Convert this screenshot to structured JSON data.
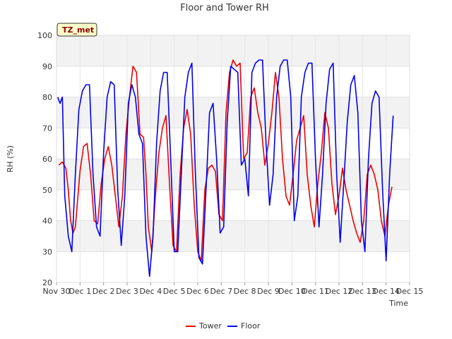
{
  "chart_data": {
    "type": "line",
    "title": "Floor and Tower RH",
    "xlabel": "Time",
    "ylabel": "RH (%)",
    "badge": "TZ_met",
    "xlim": [
      0,
      15
    ],
    "ylim": [
      20,
      100
    ],
    "x_ticks": [
      0,
      1,
      2,
      3,
      4,
      5,
      6,
      7,
      8,
      9,
      10,
      11,
      12,
      13,
      14,
      15
    ],
    "x_tick_labels": [
      "Nov 30",
      "Dec 1",
      "Dec 2",
      "Dec 3",
      "Dec 4",
      "Dec 5",
      "Dec 6",
      "Dec 7",
      "Dec 8",
      "Dec 9",
      "Dec 10",
      "Dec 11",
      "Dec 12",
      "Dec 13",
      "Dec 14",
      "Dec 15"
    ],
    "y_ticks": [
      20,
      30,
      40,
      50,
      60,
      70,
      80,
      90,
      100
    ],
    "y_tick_labels": [
      "20",
      "30",
      "40",
      "50",
      "60",
      "70",
      "80",
      "90",
      "100"
    ],
    "grid": true,
    "legend_position": "bottom-center",
    "series": [
      {
        "name": "Tower",
        "color": "#ee0000",
        "x": [
          0.1,
          0.25,
          0.4,
          0.5,
          0.6,
          0.7,
          0.8,
          1.0,
          1.15,
          1.3,
          1.45,
          1.6,
          1.75,
          1.9,
          2.05,
          2.2,
          2.35,
          2.5,
          2.65,
          2.8,
          2.95,
          3.1,
          3.25,
          3.4,
          3.55,
          3.7,
          3.8,
          3.9,
          4.05,
          4.2,
          4.35,
          4.5,
          4.65,
          4.8,
          4.95,
          5.1,
          5.25,
          5.4,
          5.55,
          5.7,
          5.85,
          6.0,
          6.15,
          6.3,
          6.45,
          6.6,
          6.75,
          6.9,
          7.05,
          7.2,
          7.35,
          7.5,
          7.65,
          7.8,
          7.95,
          8.1,
          8.25,
          8.4,
          8.55,
          8.7,
          8.85,
          9.0,
          9.15,
          9.3,
          9.45,
          9.6,
          9.75,
          9.9,
          10.05,
          10.2,
          10.35,
          10.5,
          10.65,
          10.8,
          10.95,
          11.1,
          11.25,
          11.4,
          11.55,
          11.7,
          11.85,
          12.0,
          12.15,
          12.3,
          12.45,
          12.6,
          12.75,
          12.9,
          13.05,
          13.2,
          13.35,
          13.5,
          13.65,
          13.8,
          13.95,
          14.1,
          14.25
        ],
        "y": [
          58,
          59,
          57,
          50,
          40,
          36,
          38,
          56,
          64,
          65,
          55,
          40,
          39,
          52,
          60,
          64,
          58,
          48,
          38,
          48,
          68,
          80,
          90,
          88,
          68,
          67,
          55,
          38,
          30,
          48,
          62,
          70,
          74,
          52,
          32,
          30,
          55,
          70,
          76,
          68,
          45,
          30,
          27,
          50,
          57,
          58,
          56,
          42,
          40,
          75,
          88,
          92,
          90,
          91,
          60,
          62,
          80,
          83,
          75,
          70,
          58,
          65,
          75,
          88,
          80,
          60,
          48,
          45,
          55,
          66,
          70,
          74,
          55,
          45,
          38,
          52,
          62,
          75,
          70,
          52,
          42,
          48,
          57,
          50,
          45,
          40,
          36,
          33,
          40,
          55,
          58,
          55,
          50,
          40,
          35,
          45,
          51
        ]
      },
      {
        "name": "Floor",
        "color": "#0000ee",
        "x": [
          0.05,
          0.15,
          0.25,
          0.35,
          0.5,
          0.65,
          0.8,
          0.95,
          1.1,
          1.25,
          1.4,
          1.55,
          1.7,
          1.85,
          2.0,
          2.15,
          2.3,
          2.45,
          2.6,
          2.75,
          2.9,
          3.05,
          3.2,
          3.35,
          3.5,
          3.65,
          3.8,
          3.95,
          4.1,
          4.25,
          4.4,
          4.55,
          4.7,
          4.85,
          5.0,
          5.15,
          5.3,
          5.45,
          5.6,
          5.75,
          5.9,
          6.05,
          6.2,
          6.35,
          6.5,
          6.65,
          6.8,
          6.95,
          7.1,
          7.25,
          7.4,
          7.55,
          7.7,
          7.85,
          8.0,
          8.15,
          8.3,
          8.45,
          8.6,
          8.75,
          8.9,
          9.05,
          9.2,
          9.35,
          9.5,
          9.65,
          9.8,
          9.95,
          10.1,
          10.25,
          10.4,
          10.55,
          10.7,
          10.85,
          11.0,
          11.15,
          11.3,
          11.45,
          11.6,
          11.75,
          11.9,
          12.05,
          12.2,
          12.35,
          12.5,
          12.65,
          12.8,
          12.95,
          13.1,
          13.25,
          13.4,
          13.55,
          13.7,
          13.85,
          14.0,
          14.15,
          14.3
        ],
        "y": [
          80,
          78,
          80,
          48,
          35,
          30,
          55,
          76,
          82,
          84,
          84,
          55,
          38,
          35,
          62,
          80,
          85,
          84,
          50,
          32,
          48,
          78,
          84,
          80,
          68,
          65,
          35,
          22,
          35,
          65,
          82,
          88,
          88,
          60,
          30,
          30,
          55,
          80,
          88,
          91,
          55,
          28,
          26,
          50,
          75,
          78,
          60,
          36,
          38,
          72,
          90,
          89,
          88,
          58,
          60,
          48,
          88,
          91,
          92,
          92,
          65,
          45,
          55,
          80,
          90,
          92,
          92,
          80,
          40,
          48,
          80,
          88,
          91,
          91,
          60,
          38,
          55,
          78,
          89,
          91,
          55,
          33,
          52,
          72,
          84,
          87,
          75,
          40,
          30,
          60,
          78,
          82,
          80,
          50,
          27,
          55,
          74
        ]
      }
    ]
  }
}
